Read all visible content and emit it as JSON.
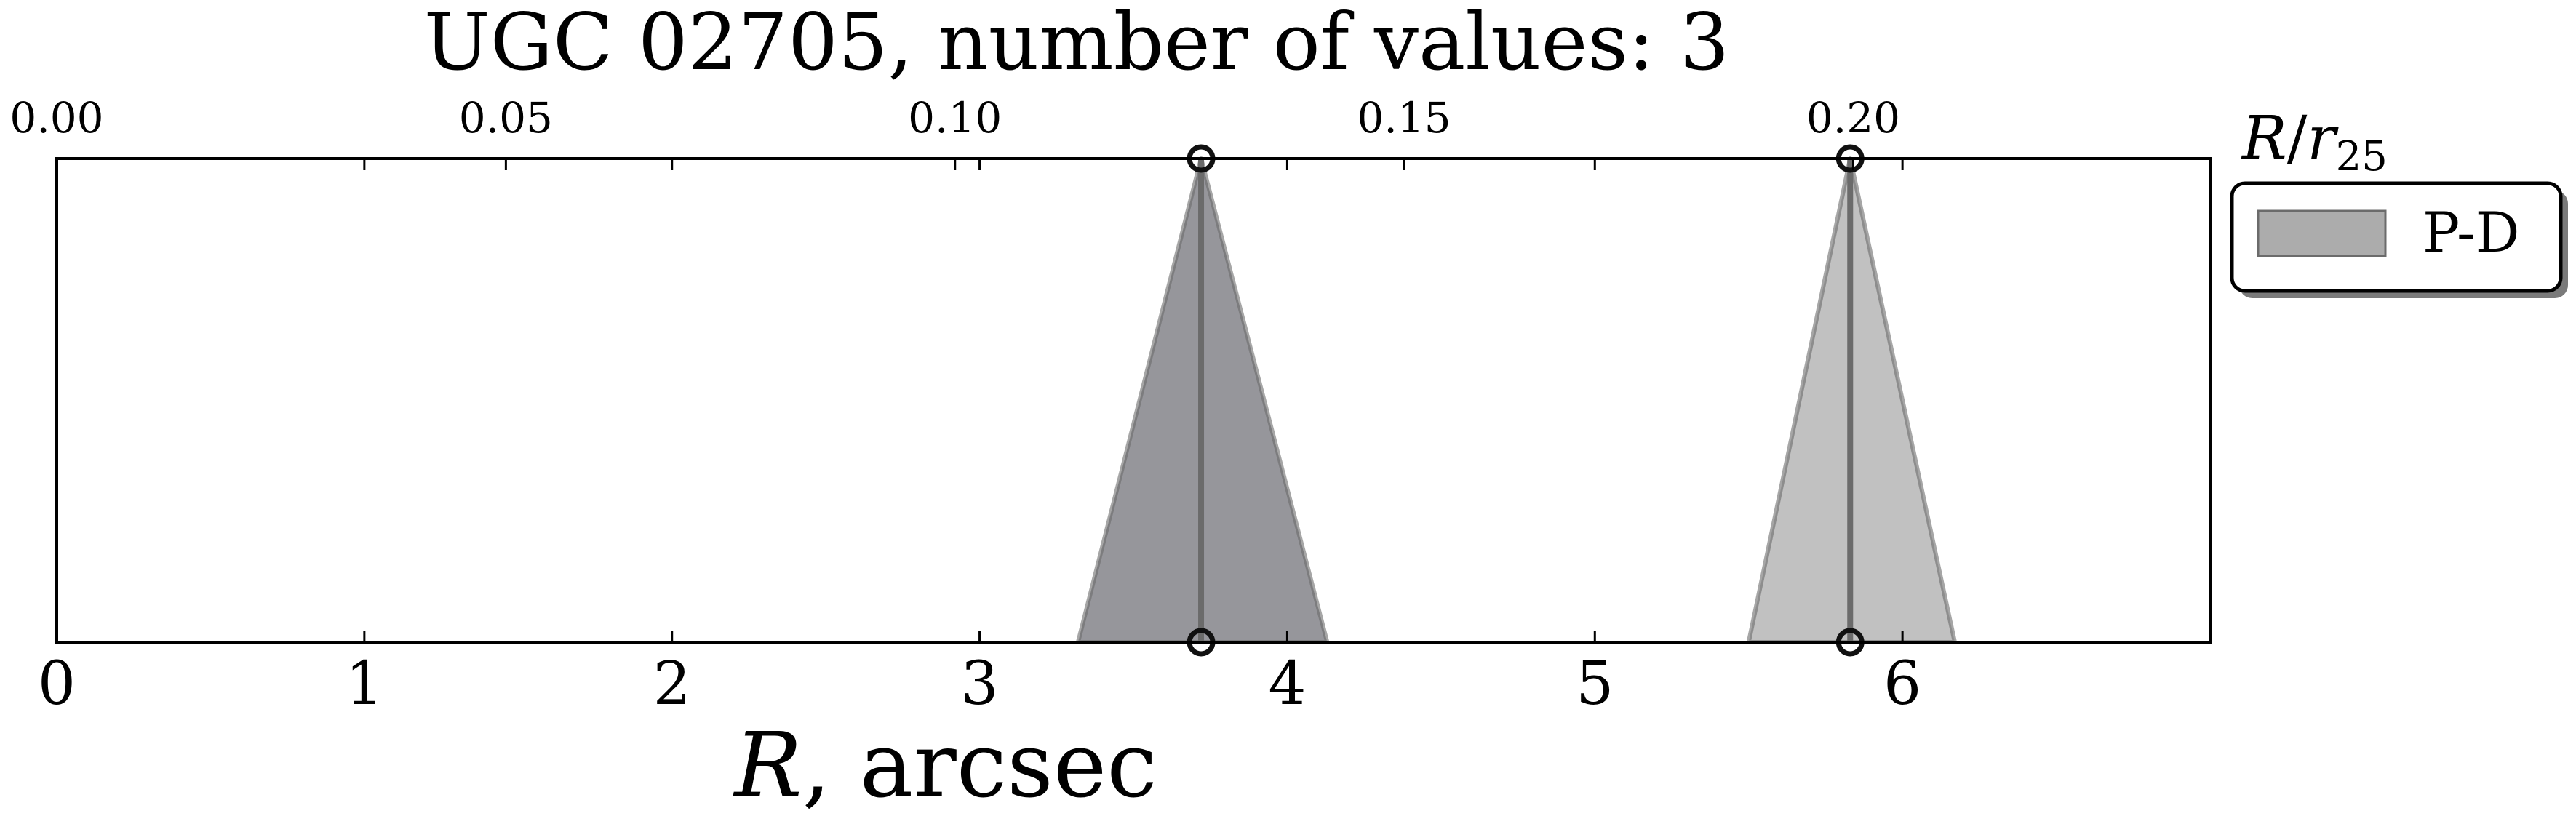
{
  "chart_data": {
    "type": "area",
    "title": "UGC 02705, number of values: 3",
    "xlabel": "R, arcsec",
    "xlabel_var": "R",
    "xlabel_rest": ", arcsec",
    "xlim": [
      0,
      7.0
    ],
    "xticks": [
      0,
      1,
      2,
      3,
      4,
      5,
      6
    ],
    "xticklabels": [
      "0",
      "1",
      "2",
      "3",
      "4",
      "5",
      "6"
    ],
    "top_axis": {
      "label": "R/r25",
      "label_num": "R",
      "label_den": "r",
      "label_sub": "25",
      "ticks": [
        0.0,
        0.05,
        0.1,
        0.15,
        0.2
      ],
      "ticklabels": [
        "0.00",
        "0.05",
        "0.10",
        "0.15",
        "0.20"
      ],
      "arcsec_per_unit": 29.2
    },
    "yaxis_visible": false,
    "grid": false,
    "legend": {
      "placement": "outside-right-top",
      "entries": [
        {
          "label": "P-D",
          "color": "#808080"
        }
      ]
    },
    "series": [
      {
        "name": "P-D",
        "peaks": [
          {
            "center": 3.72,
            "left": 3.32,
            "right": 4.13,
            "color": "#6e6e75",
            "opacity": 0.72
          },
          {
            "center": 5.83,
            "left": 5.5,
            "right": 6.17,
            "color": "#a9a9a9",
            "opacity": 0.72
          }
        ]
      }
    ],
    "values": [
      3.72,
      5.83,
      5.83
    ],
    "colors": {
      "line": "#6b6b6b",
      "marker_edge": "#111111",
      "axes": "#000000"
    }
  }
}
